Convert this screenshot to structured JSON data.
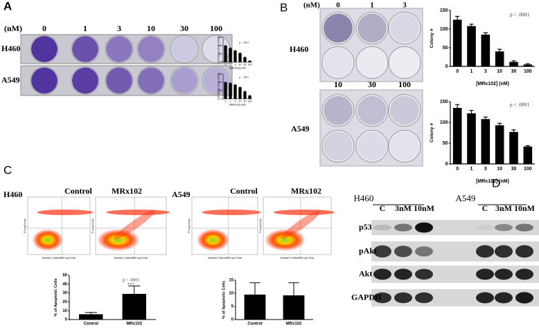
{
  "panels": {
    "A": {
      "letter": "A",
      "unit": "(nM)",
      "doses": [
        "0",
        "1",
        "3",
        "10",
        "30",
        "100"
      ],
      "rows": [
        "H460",
        "A549"
      ]
    },
    "B": {
      "letter": "B",
      "unit": "(nM)",
      "doses_top": [
        "0",
        "1",
        "3"
      ],
      "doses_bottom": [
        "10",
        "30",
        "100"
      ],
      "rows": [
        "H460",
        "A549"
      ]
    },
    "C": {
      "letter": "C",
      "groups": [
        {
          "cell": "H460",
          "conditions": [
            "Control",
            "MRx102"
          ]
        },
        {
          "cell": "A549",
          "conditions": [
            "Control",
            "MRx102"
          ]
        }
      ],
      "axis_x": "Annexin-V Alexa488 Log Comp",
      "axis_y": "PI Log Comp"
    },
    "D": {
      "letter": "D",
      "cells": [
        "H460",
        "A549"
      ],
      "lanes": [
        "C",
        "3nM",
        "10nM",
        "C",
        "3nM",
        "10nM"
      ],
      "proteins": [
        "p53",
        "pAkt",
        "Akt",
        "GAPDH"
      ]
    }
  },
  "chart_data": [
    {
      "type": "bar",
      "title": "p < .0001",
      "x_label": "[MRx102] (nM)",
      "y_label": "Cell Viability (% of control)",
      "categories": [
        "0",
        "1",
        "3",
        "10",
        "30",
        "100"
      ],
      "values": [
        100,
        85,
        70,
        55,
        30,
        8
      ],
      "errors": [
        3,
        3,
        3,
        3,
        3,
        2
      ],
      "ylim": [
        0,
        150
      ],
      "yticks": [
        0,
        50,
        100,
        150
      ],
      "color": "#000000"
    },
    {
      "type": "bar",
      "title": "p < .0001",
      "x_label": "[MRx102] (nM)",
      "y_label": "Cell Viability (% of control)",
      "categories": [
        "0",
        "1",
        "3",
        "10",
        "30",
        "100"
      ],
      "values": [
        100,
        95,
        85,
        70,
        45,
        20
      ],
      "errors": [
        3,
        3,
        3,
        3,
        3,
        2
      ],
      "ylim": [
        0,
        150
      ],
      "yticks": [
        0,
        50,
        100,
        150
      ],
      "color": "#000000"
    },
    {
      "type": "bar",
      "title": "p < .0001",
      "x_label": "[MRx102] (nM)",
      "y_label": "Colony #",
      "categories": [
        "0",
        "1",
        "3",
        "10",
        "30",
        "100"
      ],
      "values": [
        125,
        108,
        85,
        40,
        12,
        5
      ],
      "errors": [
        9,
        5,
        5,
        6,
        3,
        2
      ],
      "ylim": [
        0,
        150
      ],
      "yticks": [
        0,
        50,
        100,
        150
      ],
      "color": "#000000"
    },
    {
      "type": "bar",
      "title": "p < .0001",
      "x_label": "[MRx102] (nM)",
      "y_label": "Colony #",
      "categories": [
        "0",
        "1",
        "3",
        "10",
        "30",
        "100"
      ],
      "values": [
        135,
        122,
        108,
        93,
        77,
        42
      ],
      "errors": [
        8,
        7,
        5,
        5,
        5,
        2
      ],
      "ylim": [
        0,
        150
      ],
      "yticks": [
        0,
        50,
        100,
        150
      ],
      "color": "#000000"
    },
    {
      "type": "bar",
      "title": "p < .0001",
      "annotation": "***",
      "y_label": "% of Apoptotic Cells",
      "categories": [
        "Control",
        "MRx102"
      ],
      "values": [
        6,
        29
      ],
      "errors": [
        2,
        9
      ],
      "ylim": [
        0,
        50
      ],
      "yticks": [
        0,
        10,
        20,
        30,
        40,
        50
      ],
      "color": "#000000"
    },
    {
      "type": "bar",
      "y_label": "% of Apoptotic Cells",
      "categories": [
        "Control",
        "MRx102"
      ],
      "values": [
        9.5,
        9.2
      ],
      "errors": [
        4.5,
        4.8
      ],
      "ylim": [
        0,
        15
      ],
      "yticks": [
        0,
        5,
        10,
        15
      ],
      "color": "#000000"
    }
  ]
}
